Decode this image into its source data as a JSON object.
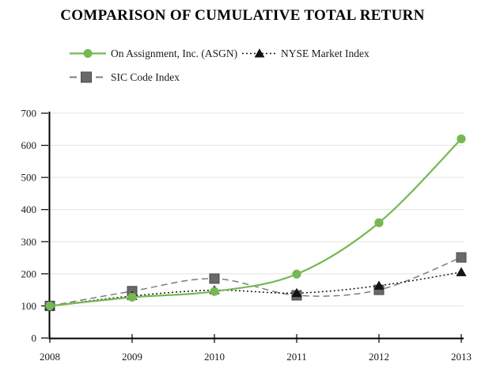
{
  "title": "COMPARISON OF CUMULATIVE TOTAL RETURN",
  "chart_data": {
    "type": "line",
    "title": "COMPARISON OF CUMULATIVE TOTAL RETURN",
    "x": [
      "2008",
      "2009",
      "2010",
      "2011",
      "2012",
      "2013"
    ],
    "series": [
      {
        "name": "On Assignment, Inc. (ASGN)",
        "values": [
          100,
          127,
          145,
          199,
          359,
          620
        ],
        "color": "#76b852",
        "marker": "circle",
        "line_style": "solid"
      },
      {
        "name": "NYSE Market Index",
        "values": [
          100,
          131,
          149,
          140,
          163,
          205
        ],
        "color": "#141414",
        "marker": "triangle",
        "line_style": "dotted"
      },
      {
        "name": "SIC Code Index",
        "values": [
          100,
          146,
          185,
          133,
          150,
          251
        ],
        "color": "#7d7d7d",
        "marker": "square",
        "marker_fill": "#696969",
        "marker_border": "#4a4a4a",
        "line_style": "dashed"
      }
    ],
    "xlabel": "",
    "ylabel": "",
    "ylim": [
      0,
      700
    ],
    "yticks": [
      0,
      100,
      200,
      300,
      400,
      500,
      600,
      700
    ],
    "grid": true,
    "grid_color": "#e2e2e2",
    "axis_color": "#000000",
    "legend_position": "top-left"
  }
}
